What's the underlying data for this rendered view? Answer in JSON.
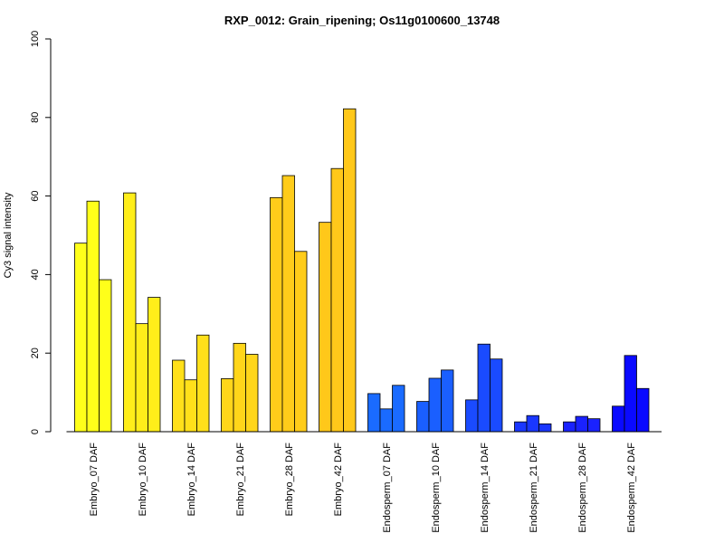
{
  "chart_data": {
    "type": "bar",
    "title": "RXP_0012: Grain_ripening; Os11g0100600_13748",
    "ylabel": "Cy3 signal intensity",
    "xlabel": "",
    "ylim": [
      0,
      100
    ],
    "yticks": [
      0,
      20,
      40,
      60,
      80,
      100
    ],
    "grid": false,
    "categories": [
      "Embryo_07 DAF",
      "Embryo_10 DAF",
      "Embryo_14 DAF",
      "Embryo_21 DAF",
      "Embryo_28 DAF",
      "Embryo_42 DAF",
      "Endosperm_07 DAF",
      "Endosperm_10 DAF",
      "Endosperm_14 DAF",
      "Endosperm_21 DAF",
      "Endosperm_28 DAF",
      "Endosperm_42 DAF"
    ],
    "group_colors": [
      "#ffff1a",
      "#ffee1a",
      "#ffe01a",
      "#ffd61a",
      "#ffcc1a",
      "#ffc81a",
      "#1a6bff",
      "#1a5fff",
      "#1a4bff",
      "#1a37ff",
      "#1a22ff",
      "#0a0aff"
    ],
    "values": [
      [
        48.0,
        58.7,
        38.7
      ],
      [
        60.8,
        27.5,
        34.2
      ],
      [
        18.2,
        13.2,
        24.6
      ],
      [
        13.5,
        22.5,
        19.7
      ],
      [
        59.6,
        65.2,
        45.9
      ],
      [
        53.3,
        67.0,
        82.2
      ],
      [
        9.7,
        5.8,
        11.8
      ],
      [
        7.7,
        13.6,
        15.7
      ],
      [
        8.1,
        22.3,
        18.5
      ],
      [
        2.5,
        4.1,
        2.0
      ],
      [
        2.5,
        3.9,
        3.3
      ],
      [
        6.5,
        19.4,
        11.0
      ]
    ]
  }
}
